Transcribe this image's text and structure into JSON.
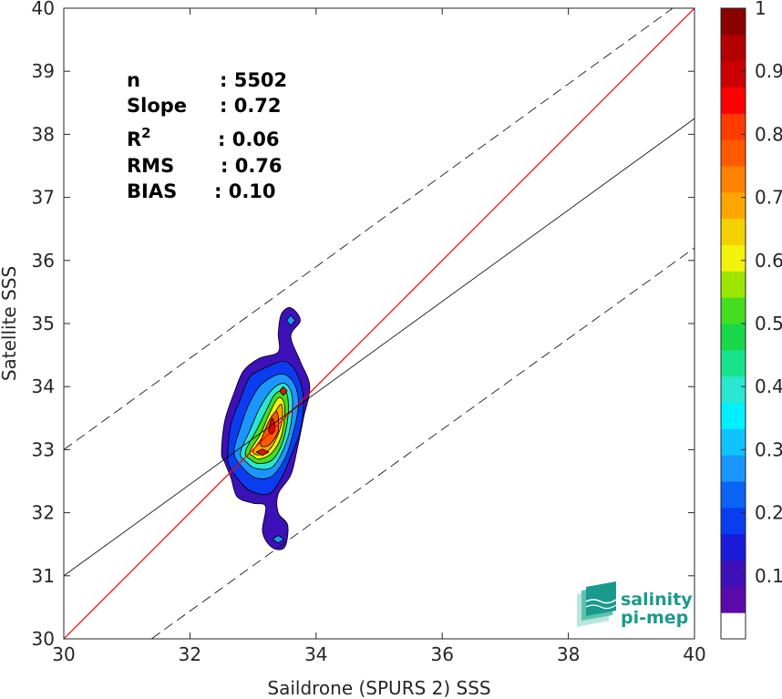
{
  "chart_data": {
    "type": "heatmap",
    "title": "",
    "xlabel": "Saildrone (SPURS 2) SSS",
    "ylabel": "Satellite SSS",
    "xlim": [
      30,
      40
    ],
    "ylim": [
      30,
      40
    ],
    "xticks": [
      30,
      32,
      34,
      36,
      38,
      40
    ],
    "yticks": [
      30,
      31,
      32,
      33,
      34,
      35,
      36,
      37,
      38,
      39,
      40
    ],
    "grid": false,
    "stats": [
      {
        "label": "n",
        "value": ": 5502"
      },
      {
        "label": "Slope",
        "value": ": 0.72"
      },
      {
        "label": "R",
        "sup": "2",
        "value": ": 0.06"
      },
      {
        "label": "RMS",
        "value": ": 0.76"
      },
      {
        "label": "BIAS",
        "value": ": 0.10"
      }
    ],
    "lines": [
      {
        "kind": "one-to-one",
        "color": "#ff0000",
        "x": [
          30,
          40
        ],
        "y": [
          30,
          40
        ]
      },
      {
        "kind": "regression",
        "color": "#000000",
        "x": [
          30,
          40
        ],
        "y": [
          31.0,
          38.25
        ]
      },
      {
        "kind": "upper-bound",
        "color": "#000000",
        "dashed": true,
        "x": [
          30,
          40
        ],
        "y": [
          33.0,
          40.25
        ]
      },
      {
        "kind": "lower-bound",
        "color": "#000000",
        "dashed": true,
        "x": [
          30,
          40
        ],
        "y": [
          29.0,
          36.2
        ]
      }
    ],
    "density_contours": [
      {
        "level": 0.05,
        "color": "#3d10b8",
        "points": [
          [
            32.5,
            32.95
          ],
          [
            32.55,
            33.45
          ],
          [
            32.7,
            33.9
          ],
          [
            32.85,
            34.25
          ],
          [
            33.1,
            34.45
          ],
          [
            33.4,
            34.55
          ],
          [
            33.4,
            34.85
          ],
          [
            33.45,
            35.15
          ],
          [
            33.6,
            35.25
          ],
          [
            33.75,
            35.05
          ],
          [
            33.6,
            34.8
          ],
          [
            33.75,
            34.4
          ],
          [
            33.9,
            34.0
          ],
          [
            33.8,
            33.5
          ],
          [
            33.7,
            33.0
          ],
          [
            33.6,
            32.6
          ],
          [
            33.4,
            32.3
          ],
          [
            33.4,
            32.0
          ],
          [
            33.55,
            31.8
          ],
          [
            33.5,
            31.45
          ],
          [
            33.3,
            31.45
          ],
          [
            33.15,
            31.7
          ],
          [
            33.2,
            32.1
          ],
          [
            33.0,
            32.15
          ],
          [
            32.75,
            32.25
          ],
          [
            32.65,
            32.55
          ],
          [
            32.55,
            32.8
          ]
        ]
      },
      {
        "level": 0.2,
        "color": "#0a3df0",
        "points": [
          [
            32.6,
            32.95
          ],
          [
            32.65,
            33.4
          ],
          [
            32.8,
            33.8
          ],
          [
            32.95,
            34.15
          ],
          [
            33.2,
            34.3
          ],
          [
            33.5,
            34.4
          ],
          [
            33.7,
            34.2
          ],
          [
            33.8,
            33.8
          ],
          [
            33.75,
            33.3
          ],
          [
            33.6,
            32.9
          ],
          [
            33.45,
            32.55
          ],
          [
            33.25,
            32.3
          ],
          [
            32.95,
            32.35
          ],
          [
            32.75,
            32.55
          ],
          [
            32.62,
            32.75
          ]
        ]
      },
      {
        "level": 0.3,
        "color": "#1b96ff",
        "points": [
          [
            32.7,
            32.95
          ],
          [
            32.8,
            33.35
          ],
          [
            32.95,
            33.75
          ],
          [
            33.15,
            34.05
          ],
          [
            33.45,
            34.2
          ],
          [
            33.65,
            34.05
          ],
          [
            33.72,
            33.7
          ],
          [
            33.62,
            33.2
          ],
          [
            33.5,
            32.85
          ],
          [
            33.3,
            32.58
          ],
          [
            33.05,
            32.55
          ],
          [
            32.85,
            32.7
          ]
        ]
      },
      {
        "level": 0.4,
        "color": "#2be6d0",
        "points": [
          [
            32.8,
            32.95
          ],
          [
            32.95,
            33.3
          ],
          [
            33.1,
            33.65
          ],
          [
            33.3,
            33.95
          ],
          [
            33.5,
            34.05
          ],
          [
            33.62,
            33.85
          ],
          [
            33.6,
            33.4
          ],
          [
            33.48,
            33.0
          ],
          [
            33.3,
            32.72
          ],
          [
            33.05,
            32.7
          ],
          [
            32.9,
            32.8
          ]
        ]
      },
      {
        "level": 0.5,
        "color": "#44dd22",
        "points": [
          [
            32.88,
            32.97
          ],
          [
            33.05,
            33.3
          ],
          [
            33.2,
            33.6
          ],
          [
            33.35,
            33.88
          ],
          [
            33.52,
            33.92
          ],
          [
            33.56,
            33.6
          ],
          [
            33.48,
            33.15
          ],
          [
            33.32,
            32.85
          ],
          [
            33.1,
            32.78
          ],
          [
            32.95,
            32.85
          ]
        ]
      },
      {
        "level": 0.6,
        "color": "#f2f20a",
        "points": [
          [
            32.95,
            32.97
          ],
          [
            33.12,
            33.25
          ],
          [
            33.25,
            33.55
          ],
          [
            33.4,
            33.82
          ],
          [
            33.5,
            33.7
          ],
          [
            33.46,
            33.25
          ],
          [
            33.3,
            32.95
          ],
          [
            33.1,
            32.85
          ],
          [
            33.0,
            32.9
          ]
        ]
      },
      {
        "level": 0.7,
        "color": "#ffa500",
        "points": [
          [
            33.0,
            32.97
          ],
          [
            33.15,
            33.2
          ],
          [
            33.3,
            33.5
          ],
          [
            33.45,
            33.72
          ],
          [
            33.45,
            33.4
          ],
          [
            33.3,
            33.05
          ],
          [
            33.12,
            32.92
          ]
        ]
      },
      {
        "level": 0.8,
        "color": "#ff5a00",
        "points": [
          [
            33.12,
            33.1
          ],
          [
            33.25,
            33.45
          ],
          [
            33.38,
            33.6
          ],
          [
            33.4,
            33.3
          ],
          [
            33.3,
            33.12
          ],
          [
            33.2,
            33.05
          ]
        ]
      },
      {
        "level": 0.9,
        "color": "#e60000",
        "points": [
          [
            33.25,
            33.3
          ],
          [
            33.3,
            33.5
          ],
          [
            33.35,
            33.35
          ],
          [
            33.3,
            33.25
          ]
        ]
      }
    ],
    "density_spots": [
      {
        "level": 0.85,
        "color": "#dd1a00",
        "x": 33.15,
        "y": 32.96,
        "rx": 0.1,
        "ry": 0.05
      },
      {
        "level": 0.85,
        "color": "#dd1a00",
        "x": 33.48,
        "y": 33.93,
        "rx": 0.06,
        "ry": 0.07
      },
      {
        "level": 0.3,
        "color": "#1b96ff",
        "x": 33.6,
        "y": 35.05,
        "rx": 0.07,
        "ry": 0.08
      },
      {
        "level": 0.3,
        "color": "#1b96ff",
        "x": 33.4,
        "y": 31.58,
        "rx": 0.09,
        "ry": 0.06
      }
    ],
    "colorbar": {
      "range": [
        0,
        1
      ],
      "ticks": [
        0.1,
        0.2,
        0.3,
        0.4,
        0.5,
        0.6,
        0.7,
        0.8,
        0.9,
        1
      ],
      "tick_labels": [
        "0.1",
        "0.2",
        "0.3",
        "0.4",
        "0.5",
        "0.6",
        "0.7",
        "0.8",
        "0.9",
        "1"
      ],
      "colors": [
        "#ffffff",
        "#5a0aa8",
        "#3d10b8",
        "#1a1ad8",
        "#0a3df0",
        "#0a64f5",
        "#1b96ff",
        "#10c2ff",
        "#00f0ff",
        "#2be6d0",
        "#18e38c",
        "#18d84a",
        "#44dd22",
        "#9ce600",
        "#f2f20a",
        "#f5d100",
        "#ffa500",
        "#ff8200",
        "#ff5a00",
        "#ff3c00",
        "#ff0000",
        "#cc0000",
        "#b30000",
        "#8b0000"
      ]
    }
  },
  "logo": {
    "line1": "salinity",
    "line2": "pi-mep"
  }
}
